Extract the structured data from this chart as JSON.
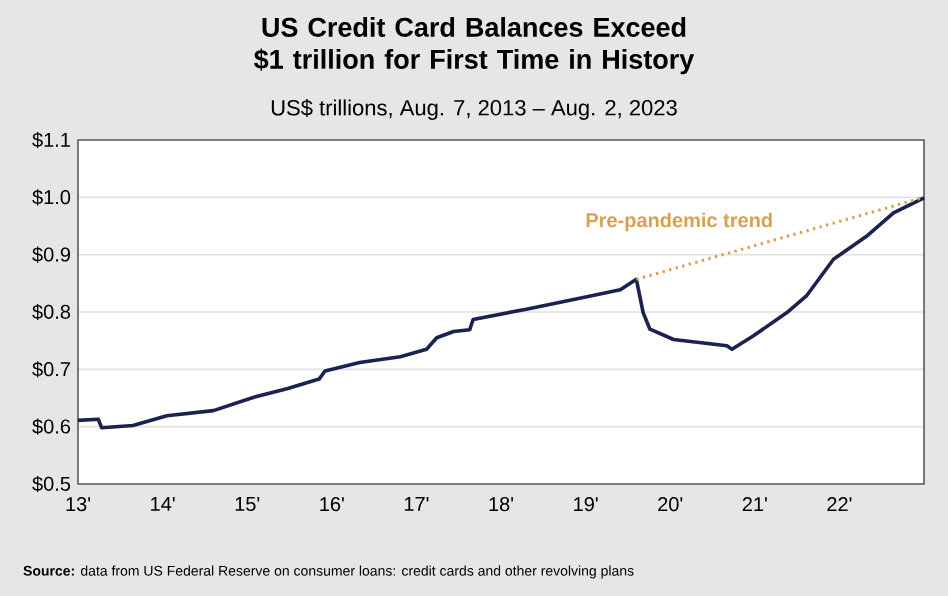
{
  "chart_data": {
    "type": "line",
    "title": "US Credit Card Balances Exceed $1 trillion for First Time in History",
    "subtitle": "US$ trillions, Aug. 7, 2013 – Aug. 2, 2023",
    "annotations": [
      "**Source:** data from US Federal Reserve on consumer loans: credit cards and other revolving plans"
    ],
    "xlim": [
      13,
      23
    ],
    "xticks": [
      {
        "value": 13,
        "label": "13'"
      },
      {
        "value": 14,
        "label": "14'"
      },
      {
        "value": 15,
        "label": "15'"
      },
      {
        "value": 16,
        "label": "16'"
      },
      {
        "value": 17,
        "label": "17'"
      },
      {
        "value": 18,
        "label": "18'"
      },
      {
        "value": 19,
        "label": "19'"
      },
      {
        "value": 20,
        "label": "20'"
      },
      {
        "value": 21,
        "label": "21'"
      },
      {
        "value": 22,
        "label": "22'"
      }
    ],
    "ylim": [
      0.5,
      1.1
    ],
    "yticks": [
      {
        "value": 0.5,
        "label": "$0.5"
      },
      {
        "value": 0.6,
        "label": "$0.6"
      },
      {
        "value": 0.7,
        "label": "$0.7"
      },
      {
        "value": 0.8,
        "label": "$0.8"
      },
      {
        "value": 0.9,
        "label": "$0.9"
      },
      {
        "value": 1.0,
        "label": "$1.0"
      },
      {
        "value": 1.1,
        "label": "$1.1"
      }
    ],
    "grid": "y",
    "marker": "none",
    "series": [
      {
        "color": "#1b2150",
        "line_style": "solid",
        "x": [
          13.0,
          13.24,
          13.28,
          13.65,
          14.05,
          14.6,
          15.07,
          15.47,
          15.85,
          15.92,
          16.33,
          16.81,
          17.12,
          17.24,
          17.44,
          17.63,
          17.67,
          18.3,
          18.93,
          19.41,
          19.6,
          19.68,
          19.76,
          20.04,
          20.67,
          20.73,
          20.98,
          21.38,
          21.61,
          21.93,
          22.32,
          22.64,
          23.0
        ],
        "values": [
          0.611,
          0.613,
          0.598,
          0.602,
          0.619,
          0.628,
          0.651,
          0.666,
          0.683,
          0.697,
          0.712,
          0.722,
          0.735,
          0.755,
          0.766,
          0.769,
          0.787,
          0.805,
          0.824,
          0.839,
          0.857,
          0.799,
          0.77,
          0.752,
          0.741,
          0.735,
          0.758,
          0.799,
          0.828,
          0.892,
          0.932,
          0.973,
          0.999
        ]
      },
      {
        "name": "Pre-pandemic trend",
        "color": "#d9a050",
        "line_style": "dotted",
        "x": [
          19.6,
          23.0
        ],
        "values": [
          0.857,
          1.0
        ]
      }
    ]
  }
}
